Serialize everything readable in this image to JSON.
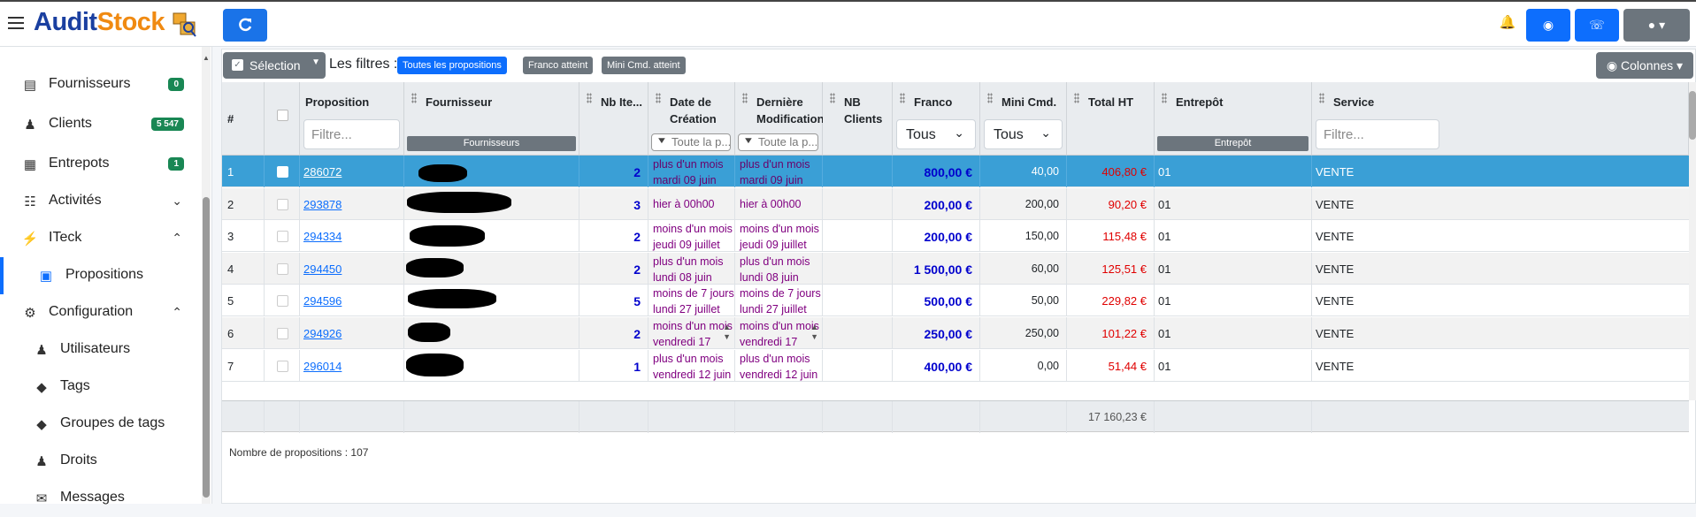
{
  "brand": {
    "part1": "Audit",
    "part2": "Stock"
  },
  "sidebar": {
    "items": [
      {
        "label": "Fournisseurs",
        "badge": "0"
      },
      {
        "label": "Clients",
        "badge": "5 547"
      },
      {
        "label": "Entrepots",
        "badge": "1"
      },
      {
        "label": "Activités"
      },
      {
        "label": "ITeck"
      },
      {
        "label": "Propositions"
      },
      {
        "label": "Configuration"
      },
      {
        "label": "Utilisateurs"
      },
      {
        "label": "Tags"
      },
      {
        "label": "Groupes de tags"
      },
      {
        "label": "Droits"
      },
      {
        "label": "Messages"
      }
    ]
  },
  "toolbar": {
    "selection": "Sélection",
    "filters_label": "Les filtres :",
    "chips": [
      "Toutes les propositions",
      "Franco atteint",
      "Mini Cmd. atteint"
    ],
    "columns": "Colonnes"
  },
  "grid": {
    "headers": {
      "index": "#",
      "proposition": "Proposition",
      "fournisseur": "Fournisseur",
      "nb_items": "Nb Ite...",
      "date_creation": "Date de Création",
      "derniere_modif": "Dernière Modification",
      "nb_clients": "NB Clients",
      "franco": "Franco",
      "mini_cmd": "Mini Cmd.",
      "total_ht": "Total HT",
      "entrepot": "Entrepôt",
      "service": "Service"
    },
    "filters": {
      "placeholder": "Filtre...",
      "fournisseurs_group": "Fournisseurs",
      "date_placeholder": "Toute la p...",
      "tous": "Tous",
      "entrepot_group": "Entrepôt"
    },
    "rows": [
      {
        "n": "1",
        "prop": "286072",
        "items": "2",
        "c1": "plus d'un mois",
        "c2": "mardi 09 juin",
        "m1": "plus d'un mois",
        "m2": "mardi 09 juin",
        "franco": "800,00 €",
        "mini": "40,00",
        "total": "406,80 €",
        "entrepot": "01",
        "service": "VENTE"
      },
      {
        "n": "2",
        "prop": "293878",
        "items": "3",
        "c1": "hier à 00h00",
        "c2": "",
        "m1": "hier à 00h00",
        "m2": "",
        "franco": "200,00 €",
        "mini": "200,00",
        "total": "90,20 €",
        "entrepot": "01",
        "service": "VENTE"
      },
      {
        "n": "3",
        "prop": "294334",
        "items": "2",
        "c1": "moins d'un mois",
        "c2": "jeudi 09 juillet",
        "m1": "moins d'un mois",
        "m2": "jeudi 09 juillet",
        "franco": "200,00 €",
        "mini": "150,00",
        "total": "115,48 €",
        "entrepot": "01",
        "service": "VENTE"
      },
      {
        "n": "4",
        "prop": "294450",
        "items": "2",
        "c1": "plus d'un mois",
        "c2": "lundi 08 juin",
        "m1": "plus d'un mois",
        "m2": "lundi 08 juin",
        "franco": "1 500,00 €",
        "mini": "60,00",
        "total": "125,51 €",
        "entrepot": "01",
        "service": "VENTE"
      },
      {
        "n": "5",
        "prop": "294596",
        "items": "5",
        "c1": "moins de 7 jours",
        "c2": "lundi 27 juillet",
        "m1": "moins de 7 jours",
        "m2": "lundi 27 juillet",
        "franco": "500,00 €",
        "mini": "50,00",
        "total": "229,82 €",
        "entrepot": "01",
        "service": "VENTE"
      },
      {
        "n": "6",
        "prop": "294926",
        "items": "2",
        "c1": "moins d'un mois",
        "c2": "vendredi 17",
        "m1": "moins d'un mois",
        "m2": "vendredi 17",
        "franco": "250,00 €",
        "mini": "250,00",
        "total": "101,22 €",
        "entrepot": "01",
        "service": "VENTE"
      },
      {
        "n": "7",
        "prop": "296014",
        "items": "1",
        "c1": "plus d'un mois",
        "c2": "vendredi 12 juin",
        "m1": "plus d'un mois",
        "m2": "vendredi 12 juin",
        "franco": "400,00 €",
        "mini": "0,00",
        "total": "51,44 €",
        "entrepot": "01",
        "service": "VENTE"
      }
    ],
    "footer_total": "17 160,23 €"
  },
  "count_label": "Nombre de propositions : 107",
  "colors": {
    "primary": "#0d6efd",
    "selected_row": "#3a9fd6",
    "badge": "#198754",
    "franco": "#0000cd",
    "total": "#e00000",
    "date": "#800080"
  }
}
